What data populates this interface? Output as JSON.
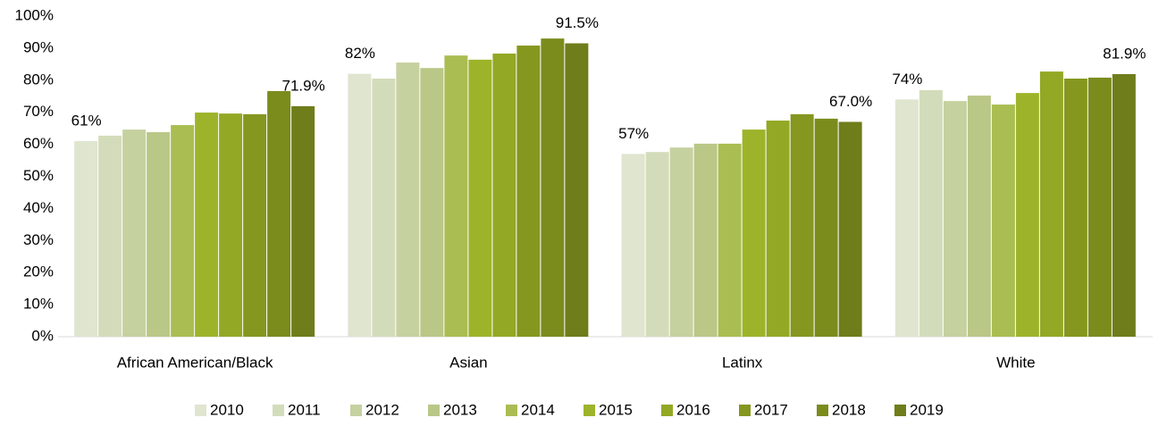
{
  "chart_data": {
    "type": "bar",
    "categories": [
      "African American/Black",
      "Asian",
      "Latinx",
      "White"
    ],
    "series": [
      {
        "name": "2010",
        "color": "#dfe5cf",
        "values": [
          61,
          82,
          57,
          74
        ],
        "value_labels": [
          "61%",
          "82%",
          "57%",
          "74%"
        ]
      },
      {
        "name": "2011",
        "color": "#d3dcba",
        "values": [
          62.7,
          80.5,
          57.6,
          76.9
        ]
      },
      {
        "name": "2012",
        "color": "#c6d1a0",
        "values": [
          64.6,
          85.5,
          59,
          73.5
        ]
      },
      {
        "name": "2013",
        "color": "#b9c787",
        "values": [
          63.8,
          83.8,
          60.2,
          75.2
        ]
      },
      {
        "name": "2014",
        "color": "#aabd52",
        "values": [
          66,
          87.7,
          60.2,
          72.4
        ]
      },
      {
        "name": "2015",
        "color": "#9db42a",
        "values": [
          69.9,
          86.4,
          64.6,
          76
        ]
      },
      {
        "name": "2016",
        "color": "#93a824",
        "values": [
          69.6,
          88.3,
          67.4,
          82.7
        ]
      },
      {
        "name": "2017",
        "color": "#86971f",
        "values": [
          69.4,
          90.8,
          69.4,
          80.5
        ]
      },
      {
        "name": "2018",
        "color": "#7b8c1d",
        "values": [
          76.6,
          93,
          68,
          80.8
        ]
      },
      {
        "name": "2019",
        "color": "#6f7d1a",
        "values": [
          71.9,
          91.5,
          67.0,
          81.9
        ],
        "value_labels": [
          "71.9%",
          "91.5%",
          "67.0%",
          "81.9%"
        ]
      }
    ],
    "ylim": [
      0,
      100
    ],
    "yticks": [
      {
        "value": 0,
        "label": "0%"
      },
      {
        "value": 10,
        "label": "10%"
      },
      {
        "value": 20,
        "label": "20%"
      },
      {
        "value": 30,
        "label": "30%"
      },
      {
        "value": 40,
        "label": "40%"
      },
      {
        "value": 50,
        "label": "50%"
      },
      {
        "value": 60,
        "label": "60%"
      },
      {
        "value": 70,
        "label": "70%"
      },
      {
        "value": 80,
        "label": "80%"
      },
      {
        "value": 90,
        "label": "90%"
      },
      {
        "value": 100,
        "label": "100%"
      }
    ],
    "legend": "bottom"
  }
}
